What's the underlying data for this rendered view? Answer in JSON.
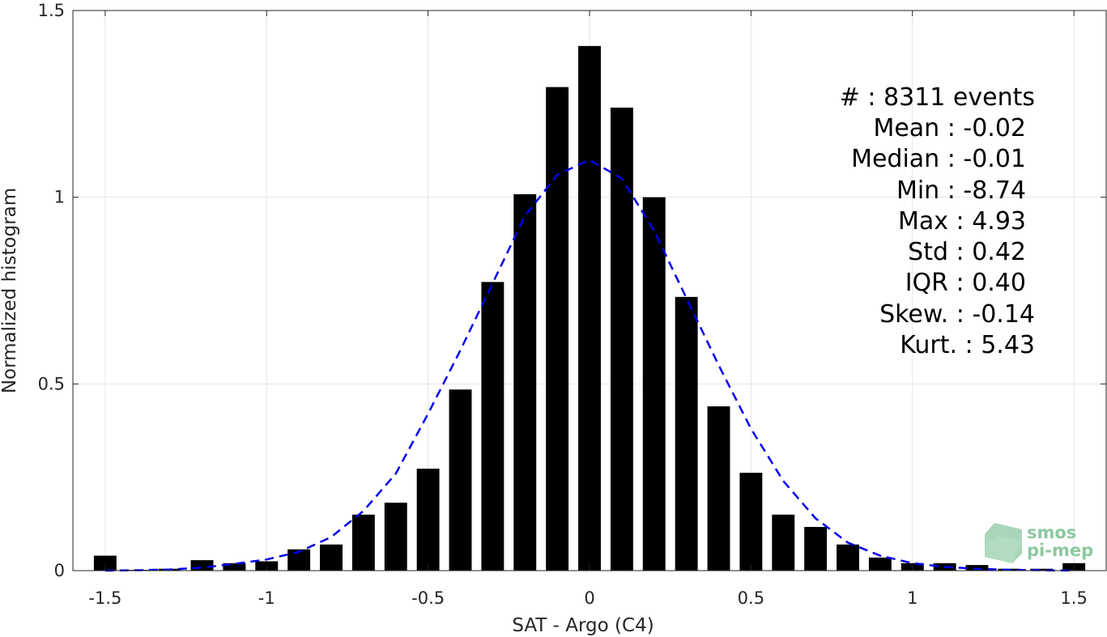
{
  "chart_data": {
    "type": "bar",
    "xlabel": "SAT - Argo (C4)",
    "ylabel": "Normalized histogram",
    "xlim": [
      -1.6,
      1.6
    ],
    "ylim": [
      0,
      1.5
    ],
    "xticks": [
      "-1.5",
      "-1",
      "-0.5",
      "0",
      "0.5",
      "1",
      "1.5"
    ],
    "yticks": [
      "0",
      "0.5",
      "1",
      "1.5"
    ],
    "grid": true,
    "bar_color": "#000000",
    "fit_color": "#0000ee",
    "series": [
      {
        "kind": "bar",
        "x": [
          -1.5,
          -1.4,
          -1.3,
          -1.2,
          -1.1,
          -1.0,
          -0.9,
          -0.8,
          -0.7,
          -0.6,
          -0.5,
          -0.4,
          -0.3,
          -0.2,
          -0.1,
          0.0,
          0.1,
          0.2,
          0.3,
          0.4,
          0.5,
          0.6,
          0.7,
          0.8,
          0.9,
          1.0,
          1.1,
          1.2,
          1.3,
          1.4,
          1.5
        ],
        "values": [
          0.04,
          0.002,
          0.005,
          0.028,
          0.02,
          0.025,
          0.057,
          0.07,
          0.15,
          0.182,
          0.273,
          0.485,
          0.773,
          1.008,
          1.295,
          1.405,
          1.24,
          1.0,
          0.733,
          0.44,
          0.262,
          0.15,
          0.117,
          0.07,
          0.035,
          0.02,
          0.02,
          0.015,
          0.005,
          0.005,
          0.02
        ]
      },
      {
        "kind": "line",
        "style": "dashed",
        "x": [
          -1.5,
          -1.4,
          -1.3,
          -1.2,
          -1.1,
          -1.0,
          -0.9,
          -0.8,
          -0.7,
          -0.6,
          -0.5,
          -0.4,
          -0.3,
          -0.2,
          -0.1,
          0.0,
          0.1,
          0.2,
          0.3,
          0.4,
          0.5,
          0.6,
          0.7,
          0.8,
          0.9,
          1.0,
          1.1,
          1.2,
          1.3,
          1.4,
          1.5
        ],
        "values": [
          0.0,
          0.001,
          0.003,
          0.008,
          0.018,
          0.03,
          0.05,
          0.09,
          0.16,
          0.26,
          0.42,
          0.59,
          0.77,
          0.95,
          1.06,
          1.1,
          1.05,
          0.91,
          0.73,
          0.55,
          0.38,
          0.24,
          0.14,
          0.075,
          0.04,
          0.02,
          0.01,
          0.005,
          0.002,
          0.001,
          0.0
        ]
      }
    ],
    "annotation": {
      "placement": "top-right",
      "lines": [
        "#  : 8311 events",
        "Mean : -0.02",
        "Median : -0.01",
        "Min : -8.74",
        "Max : 4.93",
        "Std : 0.42",
        "IQR : 0.40",
        "Skew. : -0.14",
        "Kurt. : 5.43"
      ]
    }
  },
  "logo": {
    "line1": "smos",
    "line2": "pi-mep",
    "color": "#8cc8a0"
  }
}
